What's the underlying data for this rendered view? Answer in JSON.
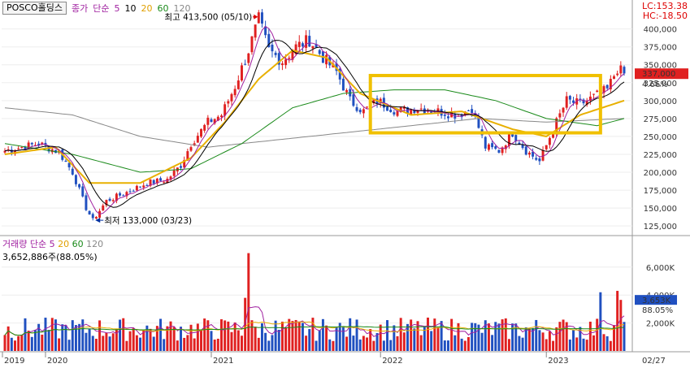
{
  "stock_name": "POSCO홀딩스",
  "price_legend": {
    "kind": "종가",
    "method": "단순",
    "periods": [
      "5",
      "10",
      "20",
      "60",
      "120"
    ]
  },
  "volume_legend": {
    "label": "거래량",
    "method": "단순",
    "periods": [
      "5",
      "20",
      "60",
      "120"
    ]
  },
  "volume_info": "3,652,886주(88.05%)",
  "lc": "LC:153.38",
  "hc": "HC:-18.50",
  "current_price": "337,000",
  "current_change": "4.66%",
  "current_volume": "3,653K",
  "current_volume_pct": "88.05%",
  "annotations": {
    "high": "최고 413,500 (05/10)",
    "low": "최저 133,000 (03/23)"
  },
  "colors": {
    "up": "#e02020",
    "down": "#2050c0",
    "ma5": "#a020a0",
    "ma10": "#000000",
    "ma20": "#e8b000",
    "ma60": "#1a8a1a",
    "ma120": "#888888",
    "highlight": "#f0c000"
  },
  "chart_data": [
    {
      "type": "candlestick",
      "ylim": [
        115000,
        420000
      ],
      "y_ticks": [
        "125,000",
        "150,000",
        "175,000",
        "200,000",
        "225,000",
        "250,000",
        "275,000",
        "300,000",
        "325,000",
        "350,000",
        "375,000",
        "400,000"
      ],
      "x_labels": [
        "2019",
        "2020",
        "2021",
        "2022",
        "2023"
      ],
      "date_label": "02/27",
      "anchors": [
        [
          0,
          230000
        ],
        [
          10,
          240000
        ],
        [
          16,
          228000
        ],
        [
          20,
          200000
        ],
        [
          24,
          150000
        ],
        [
          26,
          133000
        ],
        [
          30,
          160000
        ],
        [
          35,
          170000
        ],
        [
          42,
          185000
        ],
        [
          48,
          190000
        ],
        [
          52,
          210000
        ],
        [
          55,
          240000
        ],
        [
          60,
          270000
        ],
        [
          64,
          280000
        ],
        [
          68,
          320000
        ],
        [
          72,
          370000
        ],
        [
          75,
          413500
        ],
        [
          78,
          370000
        ],
        [
          82,
          355000
        ],
        [
          86,
          375000
        ],
        [
          90,
          385000
        ],
        [
          94,
          360000
        ],
        [
          98,
          340000
        ],
        [
          102,
          300000
        ],
        [
          106,
          285000
        ],
        [
          110,
          300000
        ],
        [
          116,
          285000
        ],
        [
          122,
          290000
        ],
        [
          128,
          285000
        ],
        [
          134,
          280000
        ],
        [
          138,
          290000
        ],
        [
          142,
          235000
        ],
        [
          146,
          230000
        ],
        [
          150,
          255000
        ],
        [
          154,
          230000
        ],
        [
          158,
          215000
        ],
        [
          162,
          260000
        ],
        [
          166,
          300000
        ],
        [
          170,
          295000
        ],
        [
          174,
          305000
        ],
        [
          178,
          315000
        ],
        [
          181,
          345000
        ],
        [
          183,
          337000
        ]
      ],
      "ma_lines": [
        {
          "name": "MA120",
          "anchors": [
            [
              0,
              290000
            ],
            [
              20,
              280000
            ],
            [
              40,
              250000
            ],
            [
              60,
              235000
            ],
            [
              80,
              245000
            ],
            [
              100,
              255000
            ],
            [
              120,
              265000
            ],
            [
              140,
              275000
            ],
            [
              160,
              270000
            ],
            [
              183,
              275000
            ]
          ]
        },
        {
          "name": "MA60",
          "anchors": [
            [
              0,
              240000
            ],
            [
              20,
              225000
            ],
            [
              40,
              200000
            ],
            [
              55,
              205000
            ],
            [
              70,
              240000
            ],
            [
              85,
              290000
            ],
            [
              100,
              310000
            ],
            [
              115,
              315000
            ],
            [
              130,
              315000
            ],
            [
              145,
              300000
            ],
            [
              160,
              275000
            ],
            [
              175,
              265000
            ],
            [
              183,
              275000
            ]
          ]
        },
        {
          "name": "MA20",
          "anchors": [
            [
              0,
              225000
            ],
            [
              15,
              235000
            ],
            [
              25,
              185000
            ],
            [
              40,
              185000
            ],
            [
              55,
              220000
            ],
            [
              65,
              270000
            ],
            [
              75,
              330000
            ],
            [
              85,
              370000
            ],
            [
              95,
              360000
            ],
            [
              105,
              310000
            ],
            [
              120,
              280000
            ],
            [
              135,
              285000
            ],
            [
              150,
              260000
            ],
            [
              160,
              250000
            ],
            [
              170,
              280000
            ],
            [
              183,
              300000
            ]
          ]
        }
      ],
      "highlight_box": {
        "x_range": [
          108,
          176
        ],
        "y_range": [
          255000,
          335000
        ]
      }
    },
    {
      "type": "bar",
      "series": [
        {
          "name": "거래량"
        }
      ],
      "ylim": [
        0,
        7500
      ],
      "y_ticks": [
        "2,000K",
        "4,000K",
        "6,000K"
      ],
      "spikes": [
        [
          72,
          7000
        ],
        [
          71,
          3800
        ],
        [
          176,
          4200
        ],
        [
          181,
          4300
        ],
        [
          182,
          3653
        ]
      ]
    }
  ]
}
